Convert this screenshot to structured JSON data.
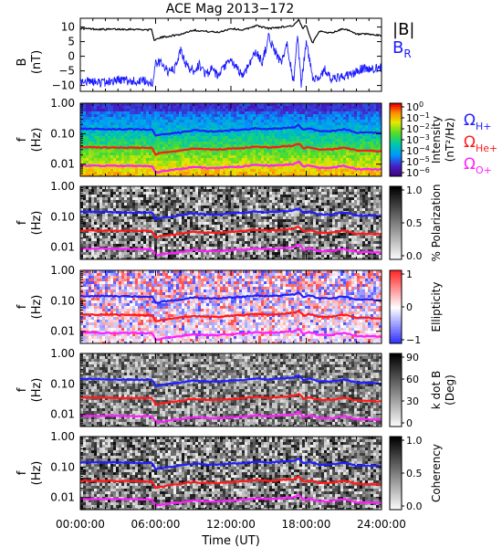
{
  "title": "ACE Mag 2013−172",
  "colors": {
    "B_total": "#000000",
    "B_R": "#1a1aff",
    "H_plus": "#2020ff",
    "He_plus": "#ff1a1a",
    "O_plus": "#ff20ff"
  },
  "chart_data": [
    {
      "panel": "field",
      "type": "line",
      "ylabel": "B\n(nT)",
      "ylim": [
        -12,
        13
      ],
      "yticks": [
        "10",
        "5",
        "0",
        "−5",
        "−10"
      ],
      "x_range_hours": [
        0,
        24
      ],
      "legend": [
        {
          "label": "|B|",
          "color_key": "B_total"
        },
        {
          "label": "B",
          "sub": "R",
          "color_key": "B_R"
        }
      ],
      "series": [
        {
          "name": "|B|",
          "x": [
            0,
            2,
            4,
            5.7,
            5.9,
            6.5,
            8,
            9,
            10,
            11,
            12,
            13,
            14,
            15,
            16,
            17,
            17.4,
            17.7,
            18,
            18.5,
            19,
            20,
            21,
            22,
            23,
            24
          ],
          "values": [
            9.5,
            9.2,
            9.3,
            9.0,
            5.5,
            6.5,
            7.5,
            9.0,
            8.5,
            8.2,
            9.5,
            9.0,
            10.5,
            9.5,
            10.0,
            10.5,
            12.5,
            9.5,
            10.5,
            4.5,
            8.5,
            8.0,
            9.5,
            7.5,
            7.5,
            7.0
          ]
        },
        {
          "name": "B_R",
          "x": [
            0,
            1,
            2,
            3,
            4,
            5,
            5.8,
            6,
            6.5,
            7,
            7.5,
            8,
            8.5,
            9,
            9.5,
            10,
            10.5,
            11,
            11.5,
            12,
            12.5,
            13,
            13.5,
            14,
            14.5,
            15,
            15.5,
            16,
            16.5,
            17,
            17.3,
            17.6,
            18,
            18.5,
            19,
            19.5,
            20,
            21,
            22,
            22.5,
            23,
            24
          ],
          "values": [
            -8.5,
            -8.8,
            -9.0,
            -8.0,
            -8.5,
            -8.5,
            -9.0,
            -2.5,
            -2.0,
            -5.5,
            -4.5,
            2.0,
            -3.5,
            -5.0,
            -3.0,
            -6.0,
            -4.5,
            -7.0,
            -3.5,
            -1.5,
            -4.5,
            -6.5,
            -2.0,
            1.5,
            -2.0,
            6.5,
            2.0,
            -2.5,
            4.0,
            -9.5,
            6.5,
            -9.8,
            5.0,
            -7.0,
            -7.5,
            -4.5,
            -8.0,
            -7.0,
            -5.5,
            -4.0,
            -4.5,
            -4.0
          ]
        }
      ]
    },
    {
      "panel": "intensity",
      "type": "heatmap",
      "ylabel": "f\n(Hz)",
      "ylim": [
        0.004,
        1.0
      ],
      "yscale": "log",
      "yticks": [
        "1.00",
        "0.10",
        "0.01"
      ],
      "colorbar": {
        "colormap": "rainbow",
        "label": "Intensity\n(nT²/Hz)",
        "ticks": [
          {
            "base": "10",
            "exp": "0"
          },
          {
            "base": "10",
            "exp": "−1"
          },
          {
            "base": "10",
            "exp": "−2"
          },
          {
            "base": "10",
            "exp": "−3"
          },
          {
            "base": "10",
            "exp": "−4"
          },
          {
            "base": "10",
            "exp": "−5"
          },
          {
            "base": "10",
            "exp": "−6"
          }
        ]
      },
      "gyro_legend": [
        {
          "sym": "Ω",
          "sub": "H+",
          "color_key": "H_plus"
        },
        {
          "sym": "Ω",
          "sub": "He+",
          "color_key": "He_plus"
        },
        {
          "sym": "Ω",
          "sub": "O+",
          "color_key": "O_plus"
        }
      ]
    },
    {
      "panel": "polarization",
      "type": "heatmap",
      "ylabel": "f\n(Hz)",
      "ylim": [
        0.004,
        1.0
      ],
      "yscale": "log",
      "yticks": [
        "1.00",
        "0.10",
        "0.01"
      ],
      "colorbar": {
        "colormap": "gray",
        "label": "% Polarization",
        "ticks": [
          "1.0",
          "0.5",
          "0.0"
        ]
      }
    },
    {
      "panel": "ellipticity",
      "type": "heatmap",
      "ylabel": "f\n(Hz)",
      "ylim": [
        0.004,
        1.0
      ],
      "yscale": "log",
      "yticks": [
        "1.00",
        "0.10",
        "0.01"
      ],
      "colorbar": {
        "colormap": "blue-white-red",
        "label": "Ellipticity",
        "ticks": [
          "1",
          "0",
          "−1"
        ]
      }
    },
    {
      "panel": "kdotb",
      "type": "heatmap",
      "ylabel": "f\n(Hz)",
      "ylim": [
        0.004,
        1.0
      ],
      "yscale": "log",
      "yticks": [
        "1.00",
        "0.10",
        "0.01"
      ],
      "colorbar": {
        "colormap": "gray",
        "label": "k dot B\n(Deg)",
        "ticks": [
          "90",
          "60",
          "30",
          "0"
        ]
      }
    },
    {
      "panel": "coherency",
      "type": "heatmap",
      "ylabel": "f\n(Hz)",
      "ylim": [
        0.004,
        1.0
      ],
      "yscale": "log",
      "yticks": [
        "1.00",
        "0.10",
        "0.01"
      ],
      "colorbar": {
        "colormap": "gray",
        "label": "Coherency",
        "ticks": [
          "1.0",
          "0.5",
          "0.0"
        ]
      }
    }
  ],
  "gyro_lines": {
    "x": [
      0,
      3,
      5.7,
      6,
      7,
      8,
      9,
      10,
      11,
      12,
      13,
      14,
      15,
      16,
      17,
      17.4,
      17.8,
      18.2,
      19,
      20,
      21,
      22,
      23,
      24
    ],
    "H_plus_hz": [
      0.145,
      0.14,
      0.138,
      0.085,
      0.1,
      0.11,
      0.13,
      0.12,
      0.12,
      0.13,
      0.135,
      0.15,
      0.14,
      0.15,
      0.16,
      0.19,
      0.13,
      0.15,
      0.12,
      0.12,
      0.14,
      0.11,
      0.11,
      0.105
    ],
    "He_plus_hz": [
      0.036,
      0.035,
      0.034,
      0.021,
      0.025,
      0.028,
      0.032,
      0.03,
      0.03,
      0.032,
      0.034,
      0.038,
      0.035,
      0.038,
      0.04,
      0.048,
      0.032,
      0.037,
      0.03,
      0.03,
      0.035,
      0.028,
      0.028,
      0.026
    ],
    "O_plus_hz": [
      0.009,
      0.0088,
      0.0086,
      0.0053,
      0.0063,
      0.0069,
      0.0081,
      0.0075,
      0.0075,
      0.0081,
      0.0084,
      0.0094,
      0.0088,
      0.0094,
      0.01,
      0.012,
      0.0081,
      0.0094,
      0.0075,
      0.0075,
      0.0088,
      0.0069,
      0.0069,
      0.0066
    ]
  },
  "x_axis": {
    "ticks": [
      "00:00:00",
      "06:00:00",
      "12:00:00",
      "18:00:00",
      "24:00:00"
    ],
    "label": "Time (UT)"
  }
}
